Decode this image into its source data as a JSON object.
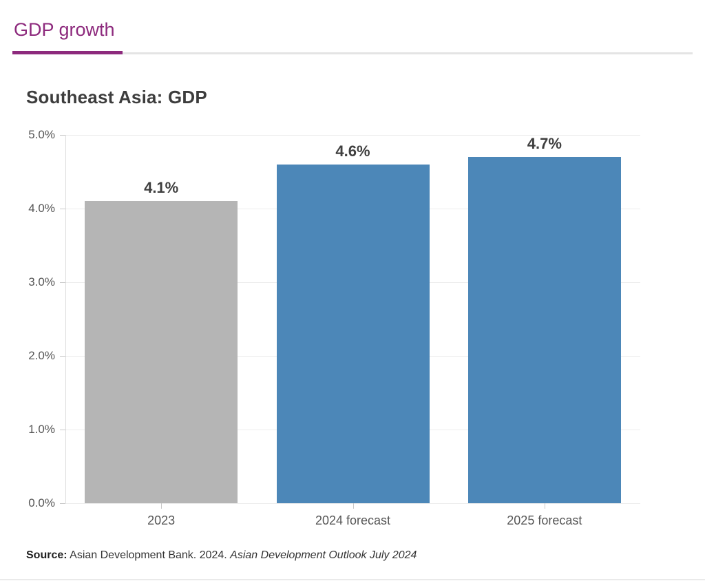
{
  "tab": {
    "label": "GDP growth"
  },
  "chart": {
    "title": "Southeast Asia: GDP",
    "source": {
      "label": "Source:",
      "text": " Asian Development Bank. 2024. ",
      "citation_italic": "Asian Development Outlook July 2024"
    }
  },
  "chart_data": {
    "type": "bar",
    "title": "Southeast Asia: GDP",
    "categories": [
      "2023",
      "2024 forecast",
      "2025 forecast"
    ],
    "values": [
      4.1,
      4.6,
      4.7
    ],
    "value_labels": [
      "4.1%",
      "4.6%",
      "4.7%"
    ],
    "bar_colors": [
      "#b5b5b5",
      "#4c87b8",
      "#4c87b8"
    ],
    "xlabel": "",
    "ylabel": "",
    "ylim": [
      0,
      5
    ],
    "ytick_step": 1,
    "ytick_labels": [
      "0.0%",
      "1.0%",
      "2.0%",
      "3.0%",
      "4.0%",
      "5.0%"
    ],
    "grid": "horizontal",
    "legend": "none"
  },
  "colors": {
    "accent": "#8d2a7d",
    "bar_blue": "#4c87b8",
    "bar_gray": "#b5b5b5",
    "grid": "#ececec",
    "axis": "#dcdcdc",
    "tick": "#c8c8c8",
    "title_text": "#3d3d3d",
    "axis_text": "#565656",
    "value_text": "#3f3f3f"
  }
}
